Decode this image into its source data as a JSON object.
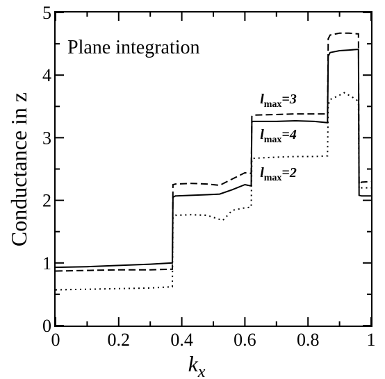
{
  "chart_data": {
    "type": "line",
    "legend_text": "Plane integration",
    "xlabel": "k",
    "xlabel_sub": "x",
    "ylabel": "Conductance in z",
    "xlim": [
      0,
      1
    ],
    "ylim": [
      0,
      5
    ],
    "xticks": [
      0,
      0.2,
      0.4,
      0.6,
      0.8,
      1
    ],
    "xtick_labels": [
      "0",
      "0.2",
      "0.4",
      "0.6",
      "0.8",
      "1"
    ],
    "yticks": [
      0,
      1,
      2,
      3,
      4,
      5
    ],
    "ytick_labels": [
      "0",
      "1",
      "2",
      "3",
      "4",
      "5"
    ],
    "grid": false,
    "series": [
      {
        "name": "lmax=4",
        "style": "solid",
        "x": [
          0,
          0.1,
          0.2,
          0.3,
          0.37,
          0.372,
          0.38,
          0.43,
          0.48,
          0.52,
          0.56,
          0.6,
          0.62,
          0.622,
          0.625,
          0.7,
          0.76,
          0.82,
          0.862,
          0.864,
          0.87,
          0.9,
          0.93,
          0.955,
          0.96,
          0.962,
          0.97,
          1.0
        ],
        "y": [
          0.93,
          0.94,
          0.96,
          0.98,
          1.0,
          2.05,
          2.07,
          2.08,
          2.09,
          2.1,
          2.17,
          2.25,
          2.23,
          3.25,
          3.26,
          3.26,
          3.27,
          3.26,
          3.24,
          4.3,
          4.36,
          4.39,
          4.4,
          4.41,
          4.41,
          2.08,
          2.07,
          2.07
        ]
      },
      {
        "name": "lmax=3",
        "style": "dashed",
        "x": [
          0,
          0.1,
          0.2,
          0.3,
          0.37,
          0.372,
          0.38,
          0.43,
          0.48,
          0.52,
          0.56,
          0.6,
          0.62,
          0.622,
          0.625,
          0.7,
          0.76,
          0.82,
          0.862,
          0.864,
          0.87,
          0.9,
          0.93,
          0.955,
          0.96,
          0.962,
          0.97,
          1.0
        ],
        "y": [
          0.87,
          0.88,
          0.89,
          0.89,
          0.9,
          2.25,
          2.26,
          2.27,
          2.26,
          2.24,
          2.34,
          2.44,
          2.43,
          3.34,
          3.36,
          3.37,
          3.38,
          3.38,
          3.38,
          4.58,
          4.64,
          4.67,
          4.67,
          4.66,
          4.66,
          2.25,
          2.29,
          2.3
        ]
      },
      {
        "name": "lmax=2",
        "style": "dotted",
        "x": [
          0,
          0.1,
          0.2,
          0.3,
          0.37,
          0.372,
          0.38,
          0.43,
          0.48,
          0.53,
          0.56,
          0.6,
          0.62,
          0.622,
          0.625,
          0.7,
          0.76,
          0.82,
          0.862,
          0.864,
          0.87,
          0.9,
          0.915,
          0.94,
          0.955,
          0.96,
          0.962,
          0.97,
          1.0
        ],
        "y": [
          0.57,
          0.58,
          0.59,
          0.6,
          0.62,
          1.74,
          1.76,
          1.77,
          1.76,
          1.68,
          1.84,
          1.88,
          1.89,
          2.66,
          2.67,
          2.69,
          2.7,
          2.7,
          2.71,
          3.52,
          3.61,
          3.68,
          3.72,
          3.65,
          3.6,
          3.55,
          2.18,
          2.2,
          2.2
        ]
      }
    ],
    "annotations": [
      {
        "base": "l",
        "sub": "max",
        "rest": "=3",
        "x": 0.648,
        "y": 3.55
      },
      {
        "base": "l",
        "sub": "max",
        "rest": "=4",
        "x": 0.648,
        "y": 2.98
      },
      {
        "base": "l",
        "sub": "max",
        "rest": "=2",
        "x": 0.648,
        "y": 2.37
      }
    ]
  }
}
